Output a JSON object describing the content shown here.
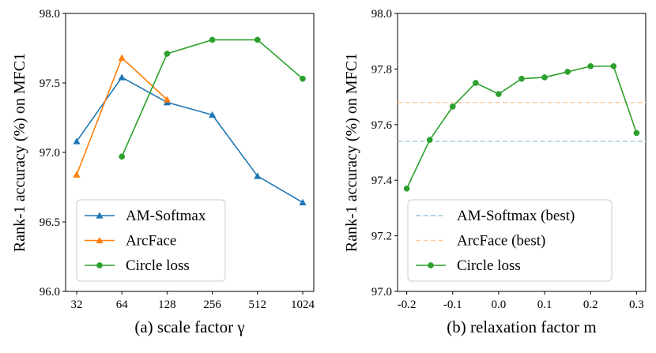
{
  "chart_data": [
    {
      "type": "line",
      "caption": "(a) scale factor γ",
      "ylabel": "Rank-1 accuracy (%) on MFC1",
      "x_categories": [
        "32",
        "64",
        "128",
        "256",
        "512",
        "1024"
      ],
      "ylim": [
        96.0,
        98.0
      ],
      "y_ticks": [
        "96.0",
        "96.5",
        "97.0",
        "97.5",
        "98.0"
      ],
      "legend_position": "lower-left",
      "series": [
        {
          "name": "AM-Softmax",
          "color": "#1f77b4",
          "marker": "triangle",
          "dashed": false,
          "points": [
            [
              0,
              97.08
            ],
            [
              1,
              97.54
            ],
            [
              2,
              97.36
            ],
            [
              3,
              97.27
            ],
            [
              4,
              96.83
            ],
            [
              5,
              96.64
            ]
          ]
        },
        {
          "name": "ArcFace",
          "color": "#ff7f0e",
          "marker": "triangle",
          "dashed": false,
          "points": [
            [
              0,
              96.84
            ],
            [
              1,
              97.68
            ],
            [
              2,
              97.38
            ]
          ]
        },
        {
          "name": "Circle loss",
          "color": "#2ca02c",
          "marker": "circle",
          "dashed": false,
          "points": [
            [
              1,
              96.97
            ],
            [
              2,
              97.71
            ],
            [
              3,
              97.81
            ],
            [
              4,
              97.81
            ],
            [
              5,
              97.53
            ]
          ]
        }
      ]
    },
    {
      "type": "line",
      "caption": "(b) relaxation factor m",
      "ylabel": "Rank-1 accuracy (%) on MFC1",
      "xlim": [
        -0.22,
        0.32
      ],
      "x_ticks": [
        "-0.2",
        "-0.1",
        "0.0",
        "0.1",
        "0.2",
        "0.3"
      ],
      "ylim": [
        97.0,
        98.0
      ],
      "y_ticks": [
        "97.0",
        "97.2",
        "97.4",
        "97.6",
        "97.8",
        "98.0"
      ],
      "legend_position": "lower-right",
      "series": [
        {
          "name": "AM-Softmax (best)",
          "color": "#9ac8e0",
          "marker": "none",
          "dashed": true,
          "points": [
            [
              -0.22,
              97.54
            ],
            [
              0.32,
              97.54
            ]
          ]
        },
        {
          "name": "ArcFace (best)",
          "color": "#ffc89a",
          "marker": "none",
          "dashed": true,
          "points": [
            [
              -0.22,
              97.68
            ],
            [
              0.32,
              97.68
            ]
          ]
        },
        {
          "name": "Circle loss",
          "color": "#2ca02c",
          "marker": "circle",
          "dashed": false,
          "points": [
            [
              -0.2,
              97.37
            ],
            [
              -0.15,
              97.545
            ],
            [
              -0.1,
              97.665
            ],
            [
              -0.05,
              97.75
            ],
            [
              0.0,
              97.71
            ],
            [
              0.05,
              97.765
            ],
            [
              0.1,
              97.77
            ],
            [
              0.15,
              97.79
            ],
            [
              0.2,
              97.81
            ],
            [
              0.25,
              97.81
            ],
            [
              0.3,
              97.57
            ]
          ]
        }
      ]
    }
  ]
}
